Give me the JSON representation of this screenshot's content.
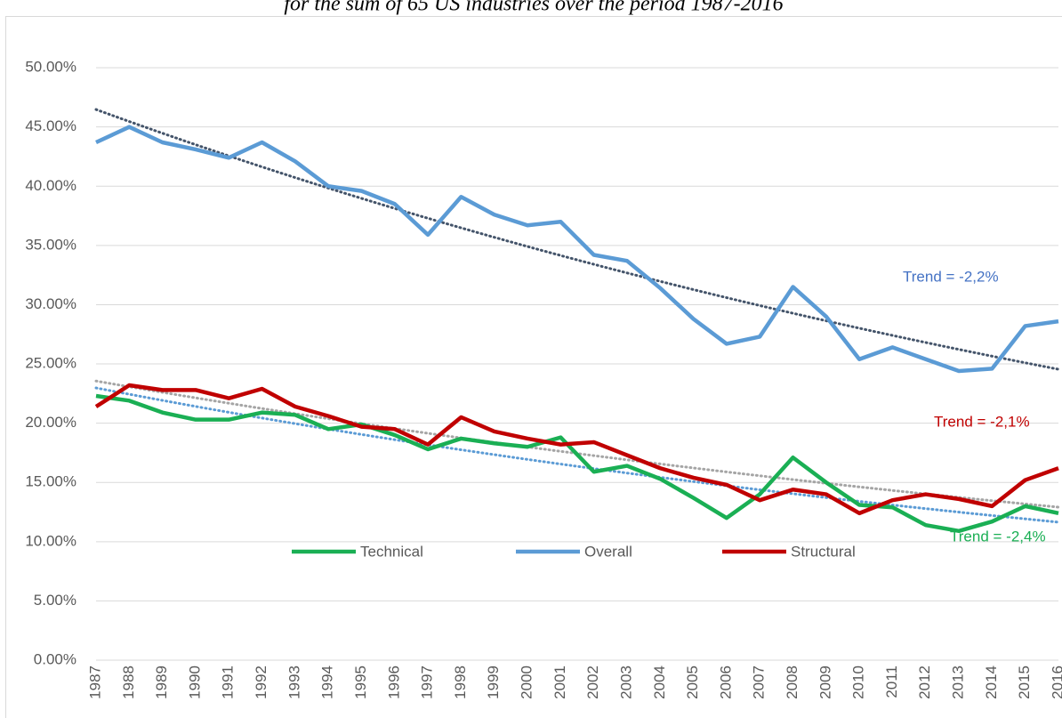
{
  "chart_data": {
    "type": "line",
    "subtitle": "for the sum of 65 US industries over the period 1987-2016",
    "categories": [
      "1987",
      "1988",
      "1989",
      "1990",
      "1991",
      "1992",
      "1993",
      "1994",
      "1995",
      "1996",
      "1997",
      "1998",
      "1999",
      "2000",
      "2001",
      "2002",
      "2003",
      "2004",
      "2005",
      "2006",
      "2007",
      "2008",
      "2009",
      "2010",
      "2011",
      "2012",
      "2013",
      "2014",
      "2015",
      "2016"
    ],
    "series": [
      {
        "name": "Technical",
        "color": "#1aaf54",
        "trend_color": "#5b9bd5",
        "values": [
          22.3,
          21.9,
          20.9,
          20.3,
          20.3,
          20.9,
          20.7,
          19.5,
          19.9,
          19.0,
          17.8,
          18.7,
          18.3,
          18.0,
          18.8,
          15.9,
          16.4,
          15.3,
          13.7,
          12.0,
          14.0,
          17.1,
          15.0,
          13.1,
          12.9,
          11.4,
          10.9,
          11.7,
          13.0,
          12.4
        ]
      },
      {
        "name": "Overall",
        "color": "#5b9bd5",
        "trend_color": "#44546a",
        "values": [
          43.7,
          45.0,
          43.7,
          43.1,
          42.4,
          43.7,
          42.1,
          40.0,
          39.6,
          38.5,
          35.9,
          39.1,
          37.6,
          36.7,
          37.0,
          34.2,
          33.7,
          31.4,
          28.8,
          26.7,
          27.3,
          31.5,
          29.0,
          25.4,
          26.4,
          25.4,
          24.4,
          24.6,
          28.2,
          28.6
        ]
      },
      {
        "name": "Structural",
        "color": "#c00000",
        "trend_color": "#a5a5a5",
        "values": [
          21.4,
          23.2,
          22.8,
          22.8,
          22.1,
          22.9,
          21.4,
          20.6,
          19.7,
          19.5,
          18.2,
          20.5,
          19.3,
          18.7,
          18.2,
          18.4,
          17.3,
          16.2,
          15.4,
          14.8,
          13.5,
          14.4,
          14.0,
          12.4,
          13.5,
          14.0,
          13.6,
          13.0,
          15.2,
          16.2
        ]
      }
    ],
    "annotations": [
      {
        "text": "Trend = -2,2%",
        "color": "#4472c4"
      },
      {
        "text": "Trend = -2,1%",
        "color": "#c00000"
      },
      {
        "text": "Trend = -2,4%",
        "color": "#1aaf54"
      }
    ],
    "ylim": [
      0,
      55
    ],
    "yticks": [
      {
        "value": 0,
        "label": "0.00%"
      },
      {
        "value": 5,
        "label": "5.00%"
      },
      {
        "value": 10,
        "label": "10.00%"
      },
      {
        "value": 15,
        "label": "15.00%"
      },
      {
        "value": 20,
        "label": "20.00%"
      },
      {
        "value": 25,
        "label": "25.00%"
      },
      {
        "value": 30,
        "label": "30.00%"
      },
      {
        "value": 35,
        "label": "35.00%"
      },
      {
        "value": 40,
        "label": "40.00%"
      },
      {
        "value": 45,
        "label": "45.00%"
      },
      {
        "value": 50,
        "label": "50.00%"
      }
    ],
    "grid": true,
    "legend": "bottom"
  }
}
